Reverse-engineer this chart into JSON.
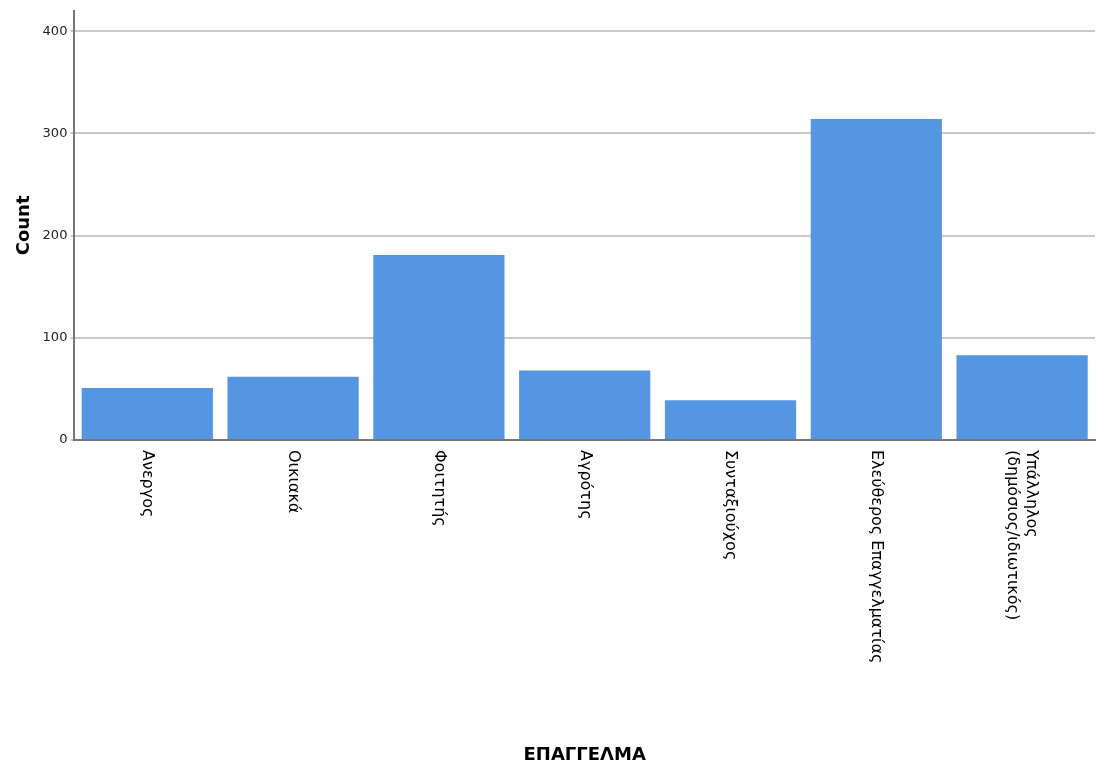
{
  "chart_data": {
    "type": "bar",
    "xlabel": "ΕΠΑΓΓΕΛΜΑ",
    "ylabel": "Count",
    "categories": [
      "Ανεργος",
      "Οικιακά",
      "Φοιτητής",
      "Αγρότης",
      "Συνταξιούχος",
      "Ελεύθερος Επαγγελματίας",
      "Υπάλληλος (δημόσιος/ιδιωτικός)"
    ],
    "values": [
      51,
      62,
      181,
      68,
      39,
      314,
      83
    ],
    "color": "#5596e2",
    "ylim": [
      0,
      420
    ],
    "yticks": [
      0,
      100,
      200,
      300,
      400
    ],
    "grid": "y"
  }
}
